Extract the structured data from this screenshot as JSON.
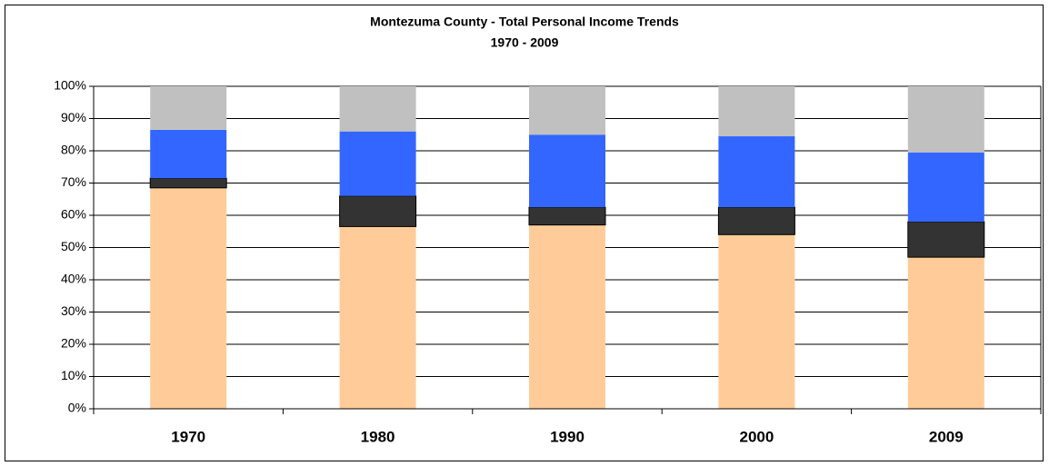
{
  "chart_data": {
    "type": "stacked_bar",
    "title": "Montezuma County - Total Personal Income Trends",
    "subtitle": "1970 - 2009",
    "categories": [
      "1970",
      "1980",
      "1990",
      "2000",
      "2009"
    ],
    "series": [
      {
        "color": "#FFCC99",
        "values": [
          68.5,
          56.5,
          57,
          54,
          47
        ]
      },
      {
        "color": "#333333",
        "values": [
          3,
          9.5,
          5.5,
          8.5,
          11
        ]
      },
      {
        "color": "#3366FF",
        "values": [
          15,
          20,
          22.5,
          22,
          21.5
        ]
      },
      {
        "color": "#C0C0C0",
        "values": [
          13.5,
          14,
          15,
          15.5,
          20.5
        ]
      }
    ],
    "ylim": [
      0,
      100
    ],
    "yticks": [
      {
        "value": 0,
        "label": "0%"
      },
      {
        "value": 10,
        "label": "10%"
      },
      {
        "value": 20,
        "label": "20%"
      },
      {
        "value": 30,
        "label": "30%"
      },
      {
        "value": 40,
        "label": "40%"
      },
      {
        "value": 50,
        "label": "50%"
      },
      {
        "value": 60,
        "label": "60%"
      },
      {
        "value": 70,
        "label": "70%"
      },
      {
        "value": 80,
        "label": "80%"
      },
      {
        "value": 90,
        "label": "90%"
      },
      {
        "value": 100,
        "label": "100%"
      }
    ],
    "grid": true
  }
}
